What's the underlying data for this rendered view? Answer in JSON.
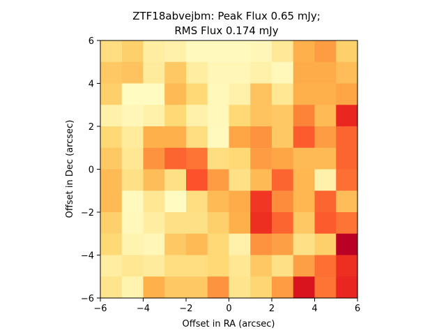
{
  "chart_data": {
    "type": "heatmap",
    "title_lines": [
      "ZTF18abvejbm: Peak Flux 0.65 mJy;",
      "RMS Flux 0.174 mJy"
    ],
    "xlabel": "Offset in RA (arcsec)",
    "ylabel": "Offset in Dec (arcsec)",
    "xlim": [
      -6,
      6
    ],
    "ylim": [
      -6,
      6
    ],
    "xticks": [
      -6,
      -4,
      -2,
      0,
      2,
      4,
      6
    ],
    "yticks": [
      -6,
      -4,
      -2,
      0,
      2,
      4,
      6
    ],
    "xtick_labels": [
      "−6",
      "−4",
      "−2",
      "0",
      "2",
      "4",
      "6"
    ],
    "ytick_labels": [
      "−6",
      "−4",
      "−2",
      "0",
      "2",
      "4",
      "6"
    ],
    "colormap": "YlOrRd",
    "rows_top_to_bottom": [
      [
        0.22,
        0.28,
        0.12,
        0.1,
        0.04,
        0.04,
        0.04,
        0.06,
        0.15,
        0.38,
        0.45,
        0.28
      ],
      [
        0.3,
        0.32,
        0.14,
        0.3,
        0.12,
        0.06,
        0.06,
        0.1,
        0.05,
        0.4,
        0.4,
        0.34
      ],
      [
        0.28,
        0.03,
        0.03,
        0.35,
        0.25,
        0.05,
        0.1,
        0.32,
        0.16,
        0.38,
        0.38,
        0.42
      ],
      [
        0.1,
        0.06,
        0.1,
        0.25,
        0.1,
        0.05,
        0.25,
        0.32,
        0.3,
        0.52,
        0.35,
        0.72
      ],
      [
        0.25,
        0.14,
        0.38,
        0.38,
        0.22,
        0.04,
        0.42,
        0.48,
        0.3,
        0.6,
        0.45,
        0.58
      ],
      [
        0.3,
        0.16,
        0.48,
        0.58,
        0.55,
        0.22,
        0.25,
        0.45,
        0.42,
        0.35,
        0.35,
        0.58
      ],
      [
        0.35,
        0.2,
        0.34,
        0.2,
        0.62,
        0.45,
        0.2,
        0.35,
        0.58,
        0.36,
        0.1,
        0.56
      ],
      [
        0.35,
        0.04,
        0.16,
        0.03,
        0.22,
        0.35,
        0.4,
        0.68,
        0.5,
        0.36,
        0.58,
        0.34
      ],
      [
        0.28,
        0.05,
        0.12,
        0.2,
        0.2,
        0.28,
        0.38,
        0.7,
        0.58,
        0.3,
        0.6,
        0.55
      ],
      [
        0.25,
        0.08,
        0.06,
        0.3,
        0.35,
        0.25,
        0.1,
        0.48,
        0.44,
        0.2,
        0.28,
        0.88
      ],
      [
        0.12,
        0.16,
        0.14,
        0.22,
        0.22,
        0.25,
        0.16,
        0.3,
        0.2,
        0.44,
        0.56,
        0.7
      ],
      [
        0.18,
        0.08,
        0.38,
        0.3,
        0.3,
        0.48,
        0.18,
        0.26,
        0.45,
        0.78,
        0.55,
        0.72
      ]
    ]
  }
}
